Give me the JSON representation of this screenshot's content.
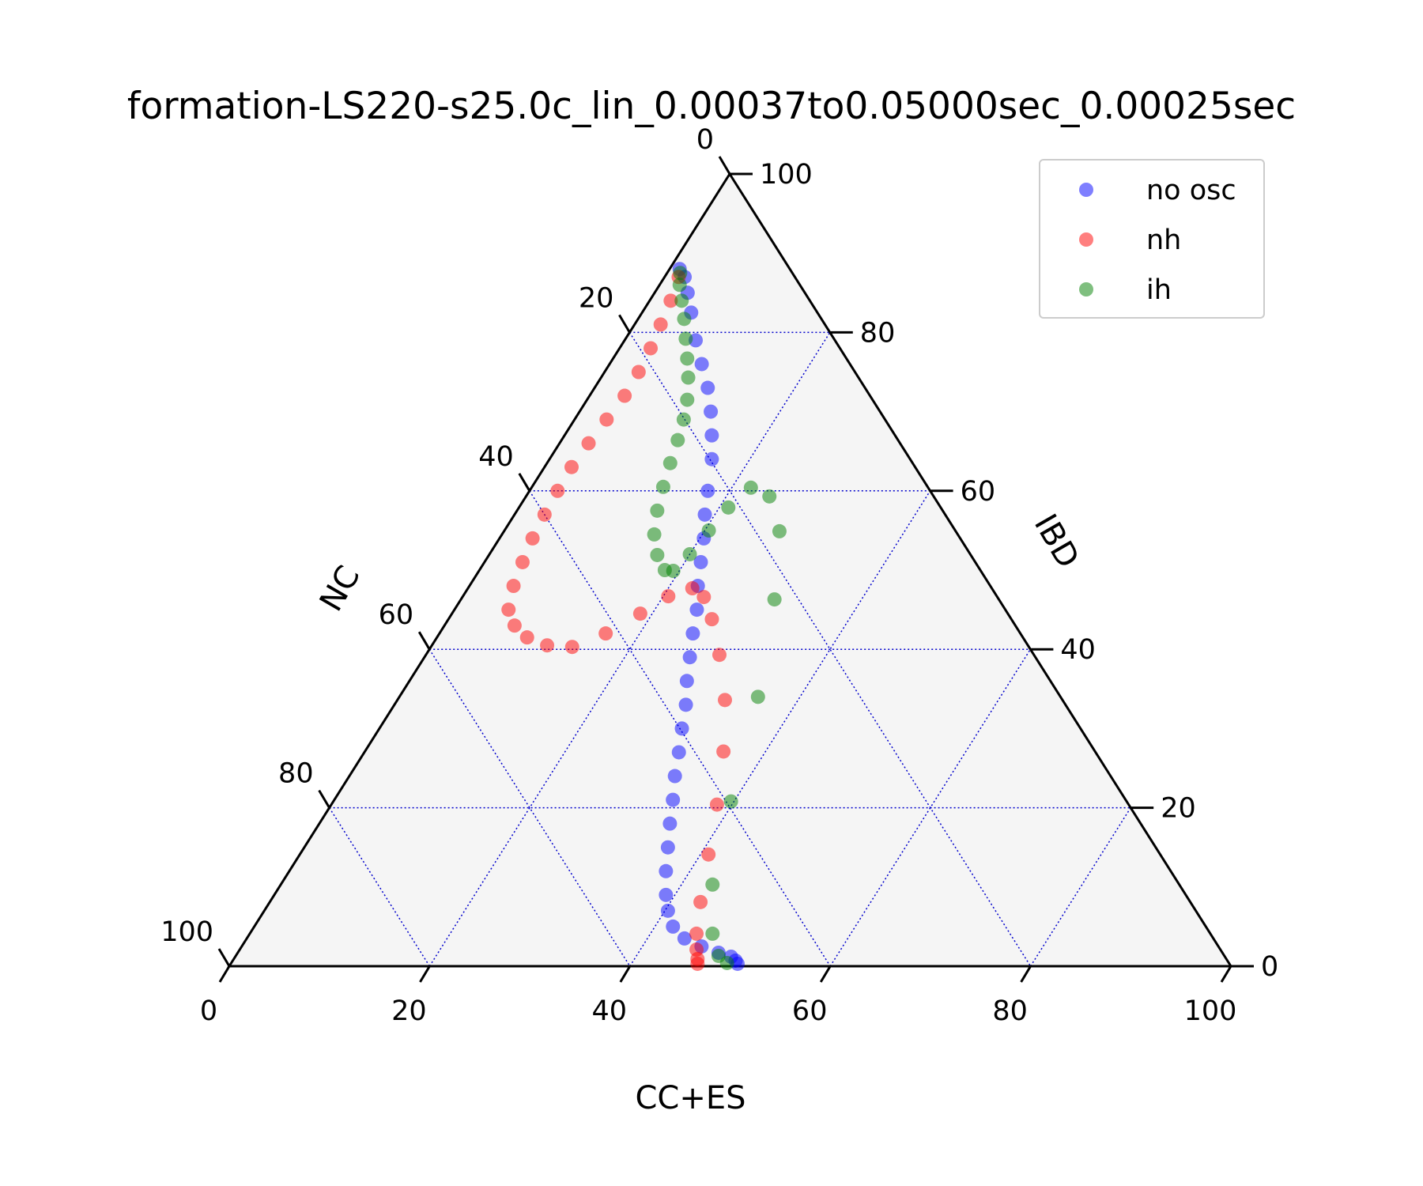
{
  "chart_data": {
    "type": "scatter",
    "plot_kind": "ternary",
    "title": "formation-LS220-s25.0c_lin_0.00037to0.05000sec_0.00025sec",
    "axes": {
      "bottom": {
        "label": "CC+ES",
        "range": [
          0,
          100
        ],
        "ticks": [
          0,
          20,
          40,
          60,
          80,
          100
        ]
      },
      "right": {
        "label": "IBD",
        "range": [
          0,
          100
        ],
        "ticks": [
          0,
          20,
          40,
          60,
          80,
          100
        ]
      },
      "left": {
        "label": "NC",
        "range": [
          0,
          100
        ],
        "ticks": [
          0,
          20,
          40,
          60,
          80,
          100
        ]
      }
    },
    "grid": true,
    "grid_interval": 20,
    "legend_position": "top-right",
    "colors": {
      "no osc": "#0000ff",
      "nh": "#ff0000",
      "ih": "#008000",
      "grid": "#0000cc",
      "frame": "#000000",
      "background": "#f5f5f5"
    },
    "marker_alpha": 0.5,
    "series": [
      {
        "name": "no osc",
        "points": [
          [
            1.0,
            88.0
          ],
          [
            2.0,
            87.0
          ],
          [
            3.3,
            85.0
          ],
          [
            4.9,
            82.5
          ],
          [
            7.1,
            79.0
          ],
          [
            9.2,
            76.0
          ],
          [
            11.3,
            73.0
          ],
          [
            13.1,
            70.0
          ],
          [
            14.7,
            67.0
          ],
          [
            16.2,
            64.0
          ],
          [
            17.8,
            60.0
          ],
          [
            19.0,
            57.0
          ],
          [
            20.4,
            54.0
          ],
          [
            21.6,
            51.0
          ],
          [
            22.8,
            48.0
          ],
          [
            24.2,
            45.0
          ],
          [
            25.3,
            42.0
          ],
          [
            26.5,
            39.0
          ],
          [
            27.7,
            36.0
          ],
          [
            29.1,
            33.0
          ],
          [
            30.2,
            30.0
          ],
          [
            31.4,
            27.0
          ],
          [
            32.5,
            24.0
          ],
          [
            33.8,
            21.0
          ],
          [
            35.0,
            18.0
          ],
          [
            36.3,
            15.0
          ],
          [
            37.6,
            12.0
          ],
          [
            39.1,
            9.0
          ],
          [
            40.3,
            7.0
          ],
          [
            41.8,
            5.0
          ],
          [
            43.7,
            3.5
          ],
          [
            45.9,
            2.5
          ],
          [
            48.0,
            1.7
          ],
          [
            49.5,
            1.2
          ],
          [
            50.2,
            0.7
          ],
          [
            50.6,
            0.3
          ]
        ]
      },
      {
        "name": "nh",
        "points": [
          [
            1.4,
            87.0
          ],
          [
            2.1,
            84.0
          ],
          [
            2.6,
            81.0
          ],
          [
            3.1,
            78.0
          ],
          [
            3.4,
            75.0
          ],
          [
            3.5,
            72.0
          ],
          [
            3.2,
            69.0
          ],
          [
            2.9,
            66.0
          ],
          [
            2.7,
            63.0
          ],
          [
            2.8,
            60.0
          ],
          [
            3.0,
            57.0
          ],
          [
            3.3,
            54.0
          ],
          [
            3.8,
            51.0
          ],
          [
            4.4,
            48.0
          ],
          [
            5.4,
            45.0
          ],
          [
            7.0,
            43.0
          ],
          [
            9.0,
            41.5
          ],
          [
            11.5,
            40.5
          ],
          [
            14.1,
            40.3
          ],
          [
            16.6,
            42.0
          ],
          [
            18.8,
            44.5
          ],
          [
            20.5,
            46.7
          ],
          [
            22.4,
            47.7
          ],
          [
            24.1,
            46.6
          ],
          [
            26.3,
            43.8
          ],
          [
            29.3,
            39.3
          ],
          [
            32.7,
            33.6
          ],
          [
            35.8,
            27.1
          ],
          [
            38.5,
            20.4
          ],
          [
            40.8,
            14.1
          ],
          [
            43.0,
            8.1
          ],
          [
            44.6,
            4.1
          ],
          [
            45.6,
            2.1
          ],
          [
            46.3,
            0.9
          ],
          [
            46.6,
            0.3
          ]
        ]
      },
      {
        "name": "ih",
        "points": [
          [
            1.3,
            87.5
          ],
          [
            2.0,
            86.0
          ],
          [
            3.2,
            84.0
          ],
          [
            4.6,
            81.7
          ],
          [
            6.0,
            79.2
          ],
          [
            7.4,
            76.7
          ],
          [
            8.7,
            74.3
          ],
          [
            10.0,
            71.5
          ],
          [
            10.9,
            69.0
          ],
          [
            11.6,
            66.4
          ],
          [
            12.3,
            63.5
          ],
          [
            13.1,
            60.5
          ],
          [
            14.0,
            57.5
          ],
          [
            15.2,
            54.5
          ],
          [
            16.8,
            51.9
          ],
          [
            18.5,
            50.0
          ],
          [
            19.4,
            49.9
          ],
          [
            20.0,
            52.0
          ],
          [
            20.4,
            55.0
          ],
          [
            20.9,
            57.9
          ],
          [
            21.9,
            60.4
          ],
          [
            24.3,
            59.3
          ],
          [
            27.5,
            54.9
          ],
          [
            31.3,
            46.3
          ],
          [
            35.8,
            34.0
          ],
          [
            39.7,
            20.8
          ],
          [
            43.1,
            10.3
          ],
          [
            46.2,
            4.1
          ],
          [
            48.2,
            1.3
          ],
          [
            49.5,
            0.4
          ]
        ]
      }
    ]
  }
}
